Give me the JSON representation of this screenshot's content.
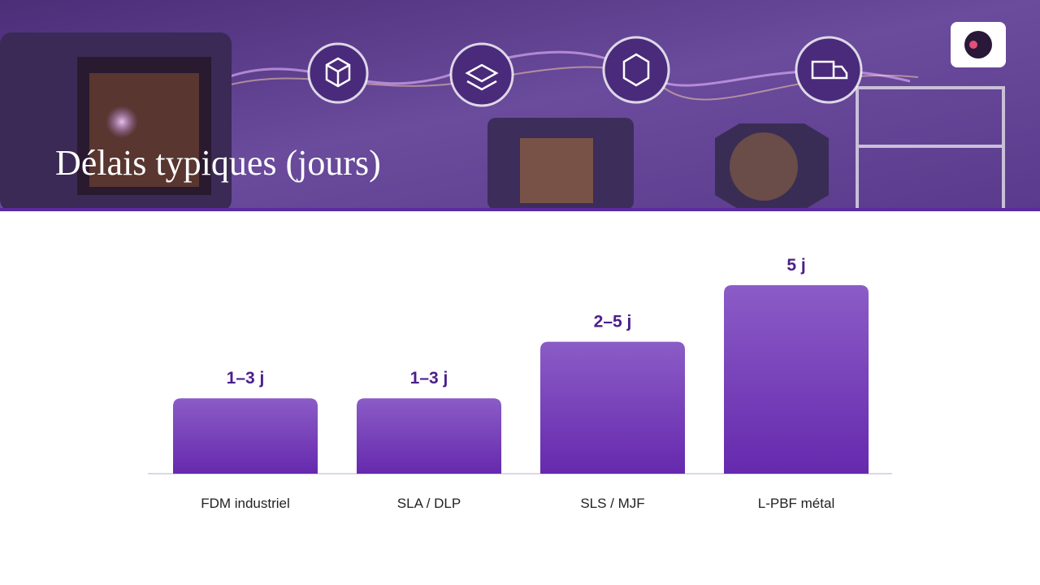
{
  "chart_data": {
    "type": "bar",
    "title": "Délais typiques (jours)",
    "categories": [
      "FDM industriel",
      "SLA / DLP",
      "SLS / MJF",
      "L-PBF métal"
    ],
    "values": [
      2,
      2,
      3.5,
      5
    ],
    "value_labels": [
      "1–3 j",
      "1–3 j",
      "2–5 j",
      "5 j"
    ],
    "color": "#7340b8"
  }
}
